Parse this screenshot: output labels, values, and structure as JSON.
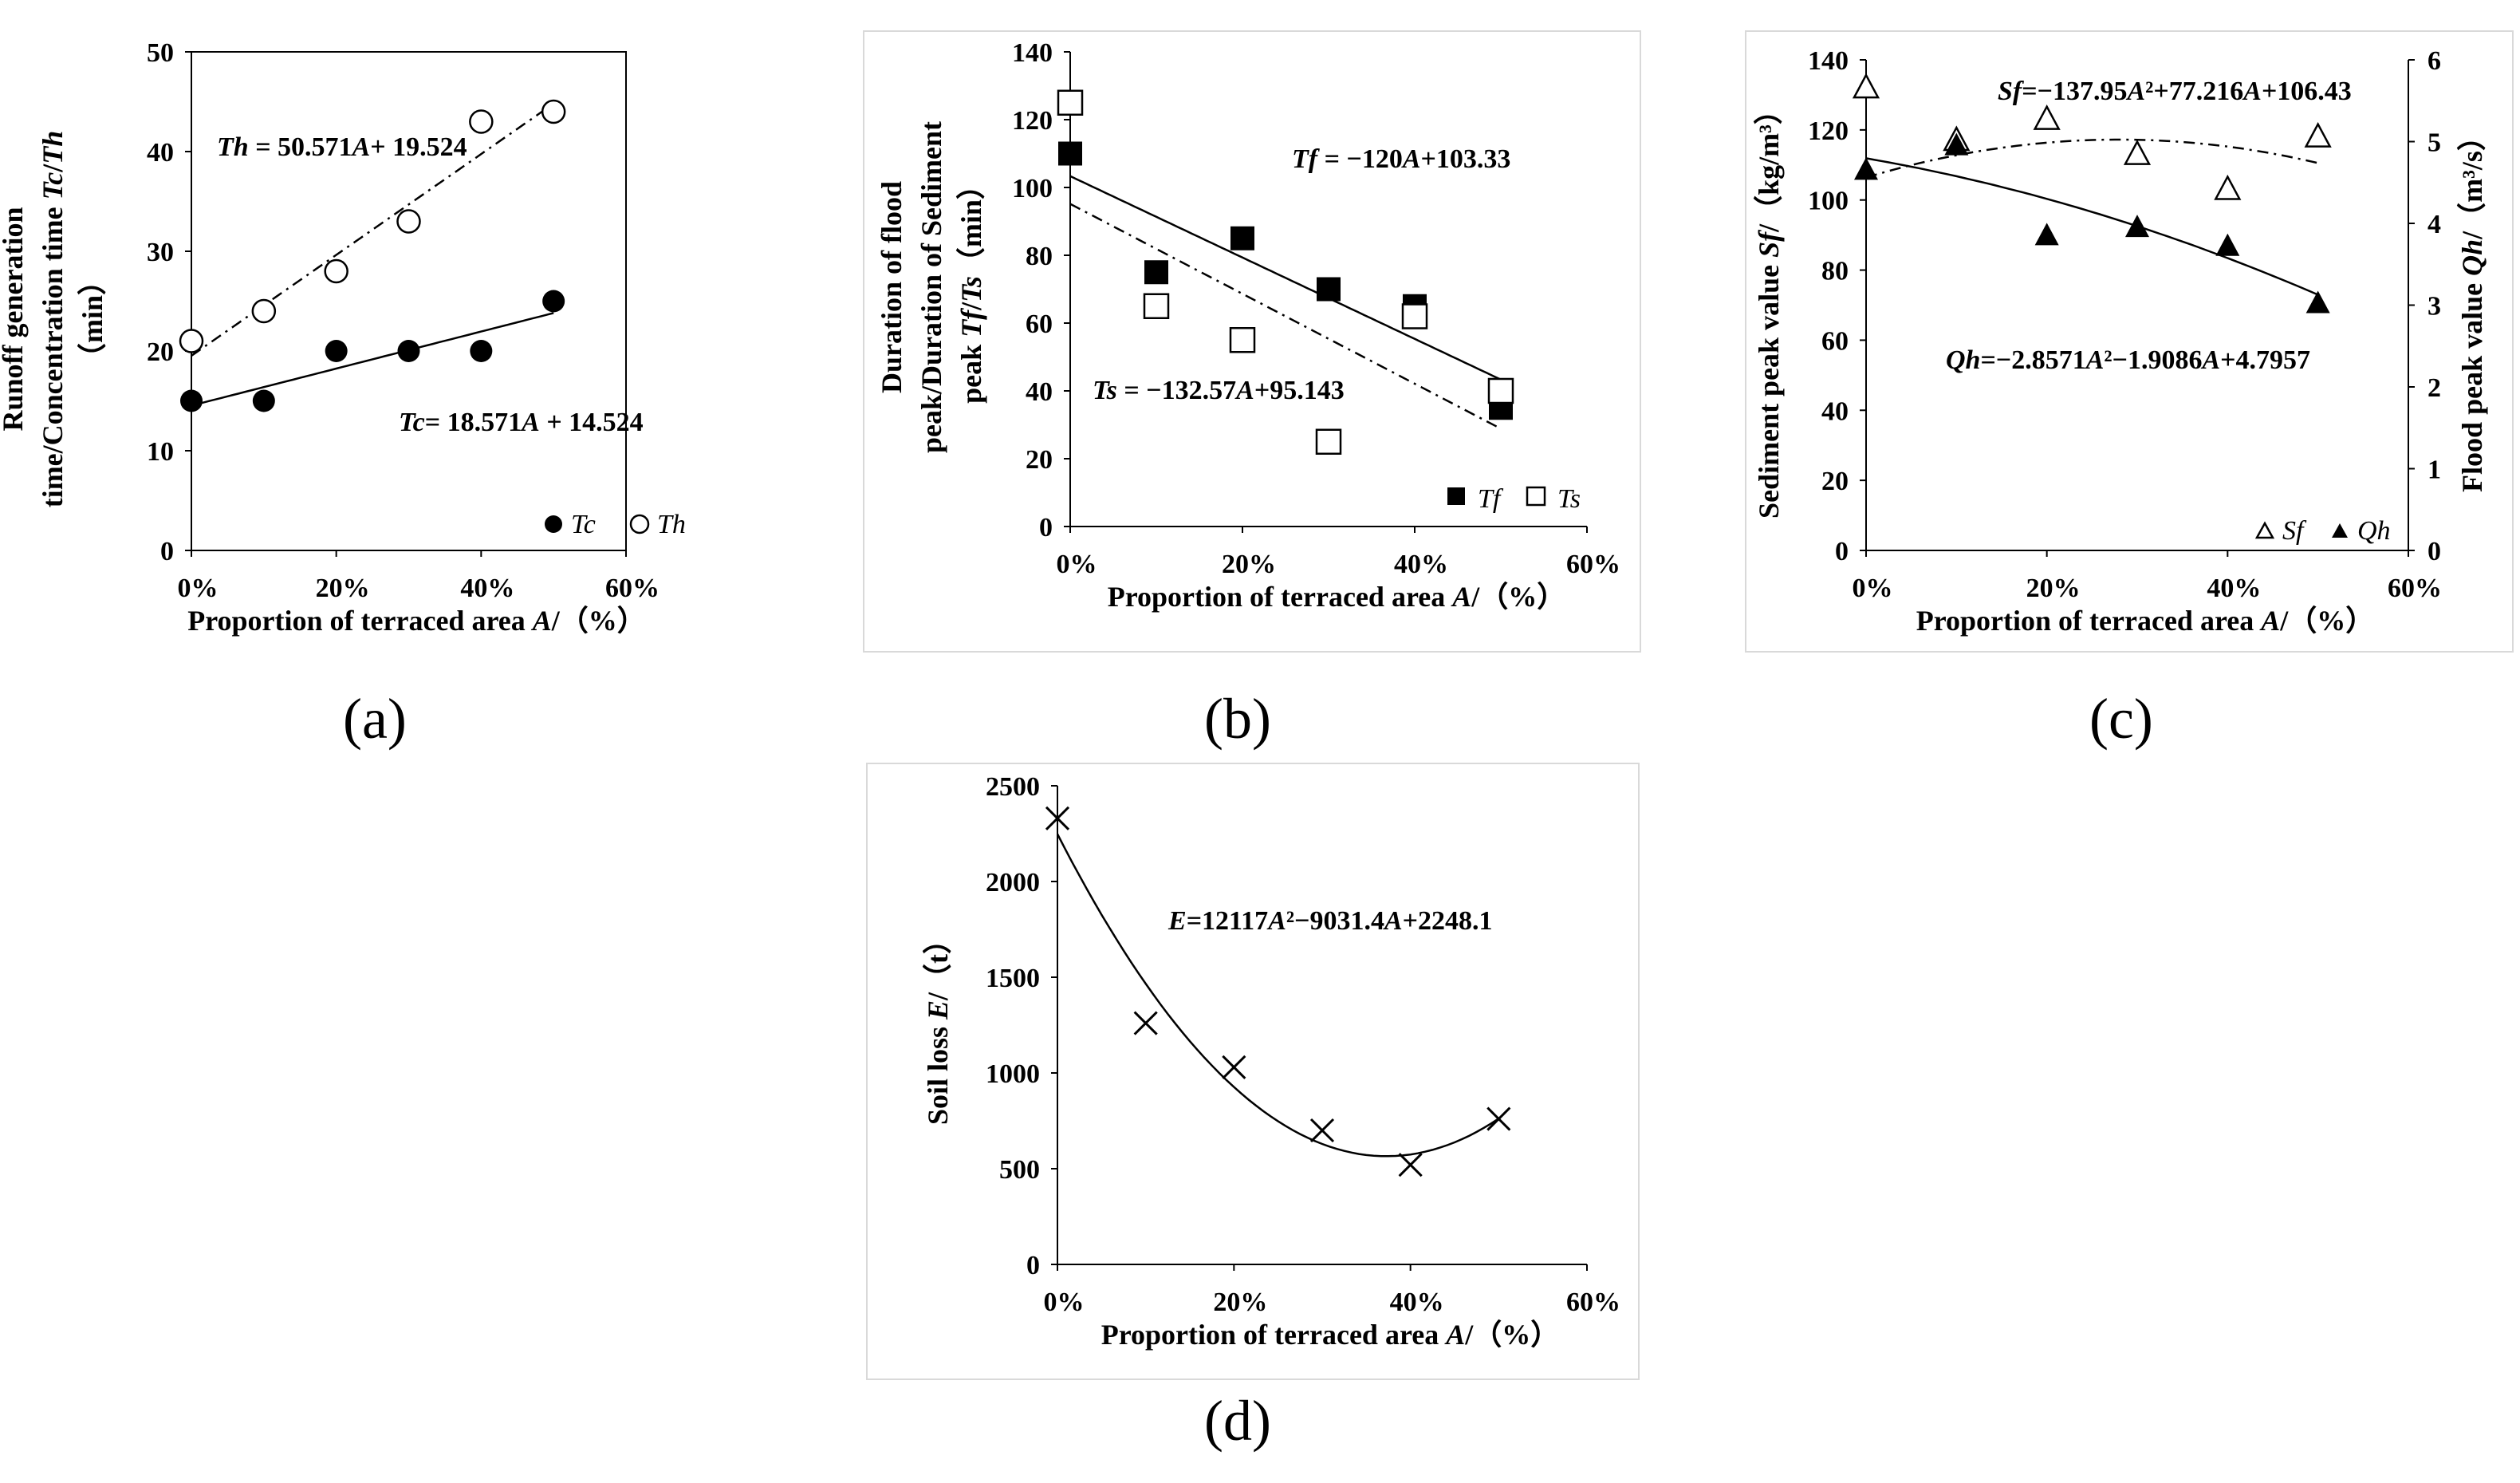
{
  "panel_labels": {
    "a": "(a)",
    "b": "(b)",
    "c": "(c)",
    "d": "(d)"
  },
  "chart_data": [
    {
      "id": "a",
      "type": "scatter",
      "xlabel_pre": "Proportion of terraced area ",
      "xlabel_var": "A",
      "xlabel_post": "/（%）",
      "ylabel_lines": [
        "Runoff generation",
        "time/Concentration time Tc/Th",
        "（min）"
      ],
      "x_ticks": [
        "0%",
        "20%",
        "40%",
        "60%"
      ],
      "y_ticks": [
        "0",
        "10",
        "20",
        "30",
        "40",
        "50"
      ],
      "xlim": [
        0,
        0.6
      ],
      "ylim": [
        0,
        50
      ],
      "series": [
        {
          "name": "Tc",
          "marker": "filled-circle",
          "x": [
            0,
            0.1,
            0.2,
            0.3,
            0.4,
            0.5
          ],
          "y": [
            15,
            15,
            20,
            20,
            20,
            25
          ],
          "fit": {
            "type": "linear",
            "a": 18.571,
            "b": 14.524,
            "style": "solid"
          },
          "equation": "Tc= 18.571A + 14.524"
        },
        {
          "name": "Th",
          "marker": "open-circle",
          "x": [
            0,
            0.1,
            0.2,
            0.3,
            0.4,
            0.5
          ],
          "y": [
            21,
            24,
            28,
            33,
            43,
            44
          ],
          "fit": {
            "type": "linear",
            "a": 50.571,
            "b": 19.524,
            "style": "dashdot"
          },
          "equation": "Th = 50.571A+ 19.524"
        }
      ],
      "legend": [
        "Tc",
        "Th"
      ]
    },
    {
      "id": "b",
      "type": "scatter",
      "xlabel_pre": "Proportion of terraced area ",
      "xlabel_var": "A",
      "xlabel_post": "/（%）",
      "ylabel_lines": [
        "Duration of flood",
        "peak/Duration of Sediment",
        "peak Tf/Ts（min）"
      ],
      "x_ticks": [
        "0%",
        "20%",
        "40%",
        "60%"
      ],
      "y_ticks": [
        "0",
        "20",
        "40",
        "60",
        "80",
        "100",
        "120",
        "140"
      ],
      "xlim": [
        0,
        0.6
      ],
      "ylim": [
        0,
        140
      ],
      "series": [
        {
          "name": "Tf",
          "marker": "filled-square",
          "x": [
            0,
            0.1,
            0.2,
            0.3,
            0.4,
            0.5
          ],
          "y": [
            110,
            75,
            85,
            70,
            65,
            35
          ],
          "fit": {
            "type": "linear",
            "a": -120,
            "b": 103.33,
            "style": "solid"
          },
          "equation": "Tf = −120A+103.33"
        },
        {
          "name": "Ts",
          "marker": "open-square",
          "x": [
            0,
            0.1,
            0.2,
            0.3,
            0.4,
            0.5
          ],
          "y": [
            125,
            65,
            55,
            25,
            62,
            40
          ],
          "fit": {
            "type": "linear",
            "a": -132.57,
            "b": 95.143,
            "style": "dashdot"
          },
          "equation": "Ts = −132.57A+95.143"
        }
      ],
      "legend": [
        "Tf",
        "Ts"
      ]
    },
    {
      "id": "c",
      "type": "scatter",
      "xlabel_pre": "Proportion of terraced area ",
      "xlabel_var": "A",
      "xlabel_post": "/（%）",
      "ylabel_left": "Sediment peak value Sf/（kg/m³）",
      "ylabel_right": "Flood peak value Qh/（m³/s）",
      "x_ticks": [
        "0%",
        "20%",
        "40%",
        "60%"
      ],
      "y_ticks": [
        "0",
        "20",
        "40",
        "60",
        "80",
        "100",
        "120",
        "140"
      ],
      "y2_ticks": [
        "0",
        "1",
        "2",
        "3",
        "4",
        "5",
        "6"
      ],
      "xlim": [
        0,
        0.6
      ],
      "ylim": [
        0,
        140
      ],
      "y2lim": [
        0,
        6
      ],
      "series": [
        {
          "name": "Sf",
          "axis": "left",
          "marker": "open-triangle",
          "x": [
            0,
            0.1,
            0.2,
            0.3,
            0.4,
            0.5
          ],
          "y": [
            132,
            117,
            123,
            113,
            103,
            118
          ],
          "fit": {
            "type": "quadratic",
            "a2": -137.95,
            "a1": 77.216,
            "a0": 106.43,
            "style": "dashdot"
          },
          "equation": "Sf=−137.95A²+77.216A+106.43"
        },
        {
          "name": "Qh",
          "axis": "right",
          "marker": "filled-triangle",
          "x": [
            0,
            0.1,
            0.2,
            0.3,
            0.4,
            0.5
          ],
          "y": [
            4.65,
            4.95,
            3.85,
            3.95,
            3.72,
            3.02
          ],
          "fit": {
            "type": "quadratic",
            "a2": -2.8571,
            "a1": -1.9086,
            "a0": 4.7957,
            "style": "solid"
          },
          "equation": "Qh=−2.8571A²−1.9086A+4.7957"
        }
      ],
      "legend": [
        "Sf",
        "Qh"
      ]
    },
    {
      "id": "d",
      "type": "scatter",
      "xlabel_pre": "Proportion of terraced area ",
      "xlabel_var": "A",
      "xlabel_post": "/（%）",
      "ylabel": "Soil loss E/（t）",
      "x_ticks": [
        "0%",
        "20%",
        "40%",
        "60%"
      ],
      "y_ticks": [
        "0",
        "500",
        "1000",
        "1500",
        "2000",
        "2500"
      ],
      "xlim": [
        0,
        0.6
      ],
      "ylim": [
        0,
        2500
      ],
      "series": [
        {
          "name": "E",
          "marker": "cross",
          "x": [
            0,
            0.1,
            0.2,
            0.3,
            0.4,
            0.5
          ],
          "y": [
            2330,
            1260,
            1030,
            700,
            520,
            760
          ],
          "fit": {
            "type": "quadratic",
            "a2": 12117,
            "a1": -9031.4,
            "a0": 2248.1,
            "style": "solid"
          },
          "equation": "E=12117A²−9031.4A+2248.1"
        }
      ]
    }
  ]
}
